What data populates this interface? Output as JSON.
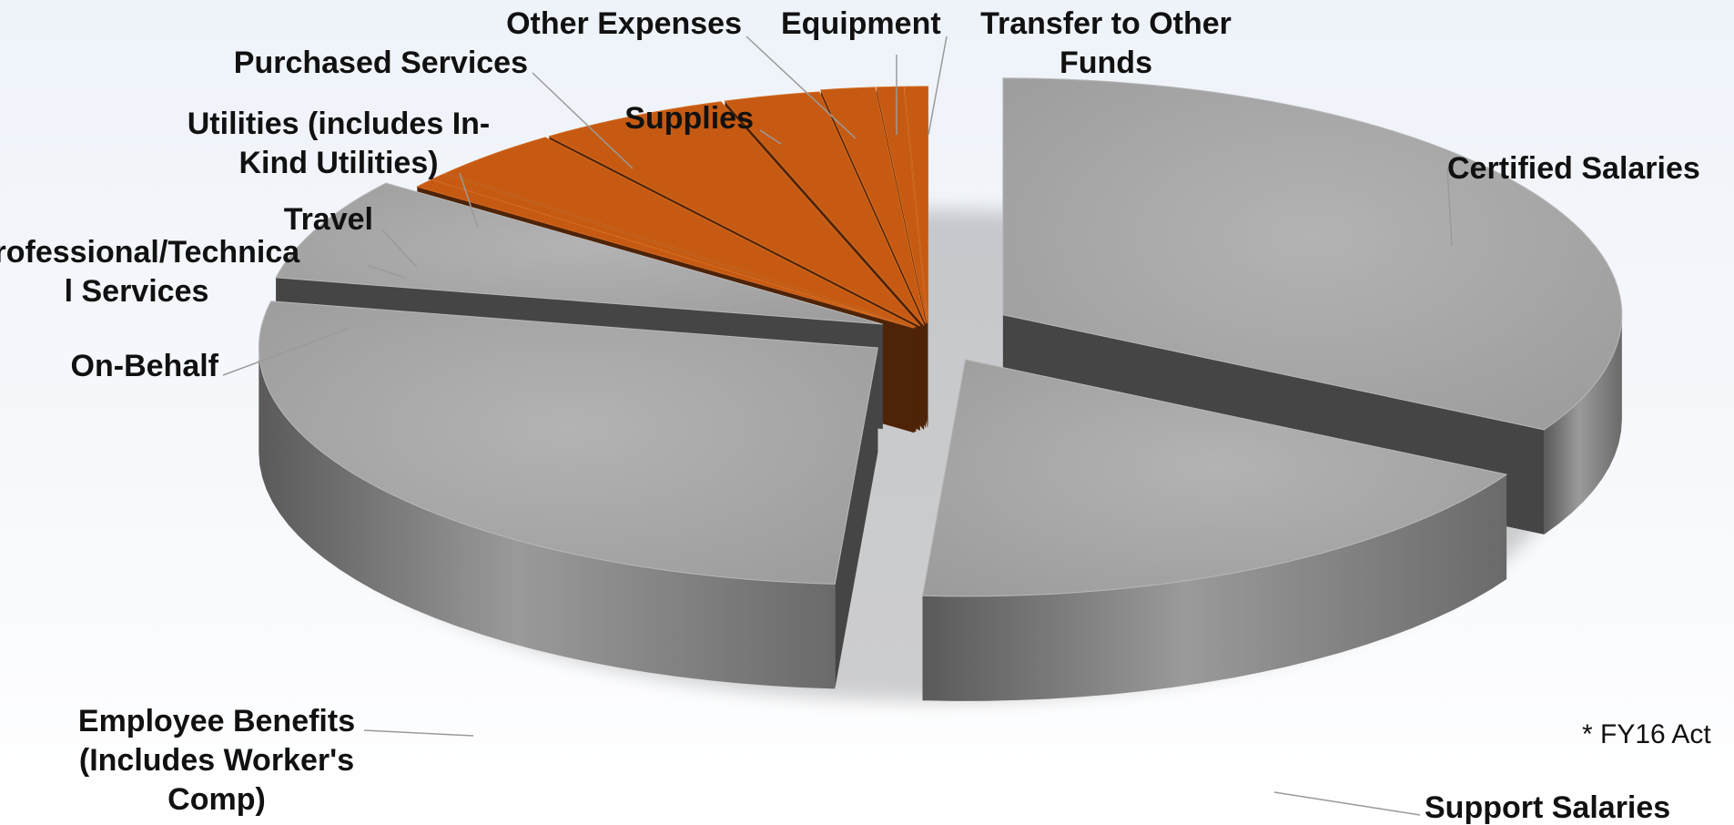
{
  "chart_data": {
    "type": "pie",
    "title": "",
    "note": "* FY16 Act",
    "colors": {
      "personnel_top": "#a4a4a4",
      "personnel_side": "#454545",
      "personnel_outer": "#8a8a8a",
      "nonpersonnel_top": "#c65a12",
      "nonpersonnel_side": "#4e2308"
    },
    "slices": [
      {
        "label": "Certified Salaries",
        "value": 33.0,
        "group": "personnel"
      },
      {
        "label": "Support Salaries",
        "value": 18.0,
        "group": "personnel"
      },
      {
        "label": "Employee Benefits (Includes Worker's Comp)",
        "value": 27.0,
        "group": "personnel"
      },
      {
        "label": "On-Behalf",
        "value": 7.0,
        "group": "personnel"
      },
      {
        "label": "Professional/Technical Services",
        "value": 0.6,
        "group": "nonpersonnel"
      },
      {
        "label": "Travel",
        "value": 0.5,
        "group": "nonpersonnel"
      },
      {
        "label": "Utilities (includes In-Kind Utilities)",
        "value": 3.5,
        "group": "nonpersonnel"
      },
      {
        "label": "Purchased Services",
        "value": 5.0,
        "group": "nonpersonnel"
      },
      {
        "label": "Supplies",
        "value": 2.5,
        "group": "nonpersonnel"
      },
      {
        "label": "Other Expenses",
        "value": 1.4,
        "group": "nonpersonnel"
      },
      {
        "label": "Equipment",
        "value": 0.7,
        "group": "nonpersonnel"
      },
      {
        "label": "Transfer to Other Funds",
        "value": 0.6,
        "group": "nonpersonnel"
      }
    ]
  }
}
